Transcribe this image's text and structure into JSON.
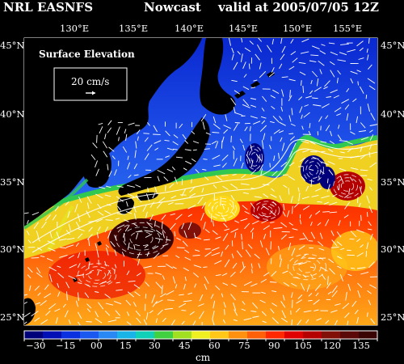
{
  "header": {
    "model": "NRL EASNFS",
    "type": "Nowcast",
    "valid": "valid at 2005/07/05 12Z"
  },
  "map": {
    "lon_labels": [
      "130°E",
      "135°E",
      "140°E",
      "145°E",
      "150°E",
      "155°E"
    ],
    "lat_labels": [
      "45°N",
      "40°N",
      "35°N",
      "30°N",
      "25°N"
    ],
    "inset_title": "Surface Elevation",
    "scale_label": "20 cm/s",
    "ocean_color": "#1c3fd8",
    "land_color": "#000000",
    "coast_color": "#ffffff",
    "vector_color": "#ffffff"
  },
  "colorbar": {
    "tick_labels": [
      "−30",
      "−15",
      "00",
      "15",
      "30",
      "45",
      "60",
      "75",
      "90",
      "105",
      "120",
      "135"
    ],
    "unit": "cm",
    "colors": [
      "#00007a",
      "#0010b4",
      "#0a30e0",
      "#1a58f0",
      "#2a88f4",
      "#18b4e8",
      "#10d0b8",
      "#40d040",
      "#a0e020",
      "#f0f020",
      "#ffc818",
      "#ff9010",
      "#ff6008",
      "#ff2800",
      "#e00000",
      "#b40000",
      "#801008",
      "#5a0808",
      "#3a0404"
    ]
  }
}
